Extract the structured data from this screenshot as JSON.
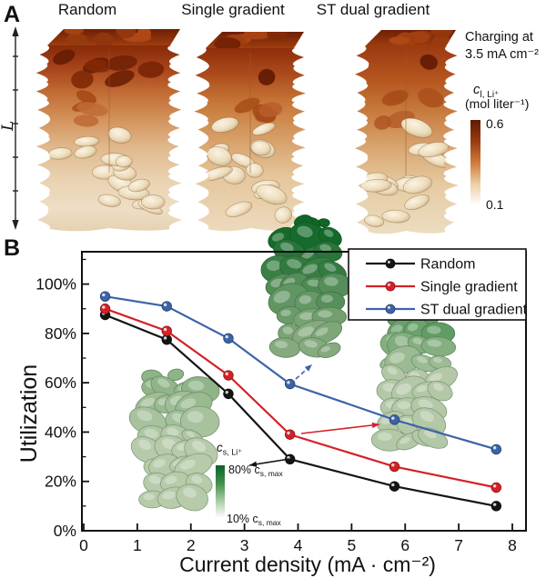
{
  "figure": {
    "panel_a": {
      "label": "A",
      "column_titles": [
        "Random",
        "Single gradient",
        "ST dual gradient"
      ],
      "length_label": "L",
      "charging_label": {
        "line1": "Charging at",
        "line2": "3.5 mA cm⁻²"
      },
      "colorbar": {
        "symbol": "c",
        "symbol_sub": "l, Li⁺",
        "unit": "(mol liter⁻¹)",
        "max": "0.6",
        "min": "0.1",
        "stops": [
          "#5e1b03",
          "#9a3c10",
          "#cf7a3a",
          "#eccfa5",
          "#ffffff"
        ]
      }
    },
    "panel_b": {
      "label": "B",
      "inset_colorbar": {
        "symbol": "c",
        "symbol_sub": "s, Li⁺",
        "top_pre": "80% c",
        "top_sub": "s, max",
        "bottom_pre": "10% c",
        "bottom_sub": "s, max",
        "stops": [
          "#0a632a",
          "#3f8f47",
          "#a7cba3",
          "#ffffff"
        ]
      }
    }
  },
  "chart_data": {
    "type": "line",
    "title": "",
    "xlabel": "Current density (mA · cm⁻²)",
    "ylabel": "Utilization",
    "xlim": [
      0,
      8.25
    ],
    "ylim": [
      0,
      113
    ],
    "grid": false,
    "legend_position": "top-right-inside",
    "xticks": [
      "0",
      "1",
      "2",
      "3",
      "4",
      "5",
      "6",
      "7",
      "8"
    ],
    "yticks": [
      "0%",
      "20%",
      "40%",
      "60%",
      "80%",
      "100%"
    ],
    "x": [
      0.4,
      1.55,
      2.7,
      3.85,
      5.8,
      7.7
    ],
    "series": [
      {
        "name": "Random",
        "color": "#141414",
        "values": [
          87.5,
          77.5,
          55.5,
          29,
          18,
          10
        ]
      },
      {
        "name": "Single gradient",
        "color": "#d42127",
        "values": [
          90,
          81,
          63,
          39,
          26,
          17.5
        ]
      },
      {
        "name": "ST dual gradient",
        "color": "#3c63a9",
        "values": [
          95,
          91,
          78,
          59.5,
          45,
          33
        ]
      }
    ]
  }
}
